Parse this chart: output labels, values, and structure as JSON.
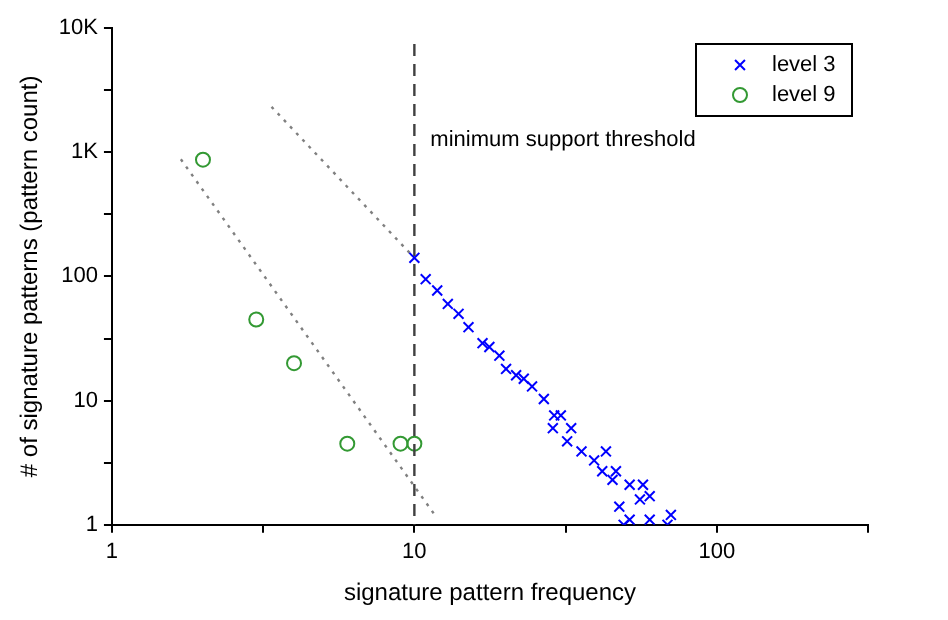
{
  "chart_data": {
    "type": "scatter",
    "xlabel": "signature pattern frequency",
    "ylabel": "# of signature patterns (pattern count)",
    "log": "xy",
    "grid": false,
    "legend": "top right",
    "xlim": [
      1,
      316.2
    ],
    "xticks": [
      1,
      {
        "value": 3.162,
        "label": null
      },
      10,
      {
        "value": 31.62,
        "label": null
      },
      100,
      {
        "value": 316.2,
        "label": null
      }
    ],
    "ylim": [
      1,
      10000
    ],
    "yticks": [
      1,
      {
        "value": 3.162,
        "label": null
      },
      10,
      {
        "value": 31.62,
        "label": null
      },
      100,
      {
        "value": 316.2,
        "label": null
      },
      {
        "value": 1000,
        "label": "1K"
      },
      {
        "value": 3162,
        "label": null
      },
      {
        "value": 10000,
        "label": "10K"
      }
    ],
    "ref_lines": [
      {
        "axis": "x",
        "value": 10,
        "label": "minimum support threshold",
        "color": "#404040",
        "line_style": "dashed"
      }
    ],
    "series": [
      {
        "name": "level 3",
        "color": "#0000ff",
        "marker": "cross",
        "x": [
          10,
          10.9,
          11.9,
          12.9,
          14,
          15.1,
          16.8,
          17.7,
          19.1,
          20.1,
          21.7,
          23,
          24.5,
          26.8,
          29,
          30.5,
          28.7,
          33,
          32,
          35.7,
          39.3,
          43,
          41.8,
          46.4,
          45.2,
          51.5,
          57,
          47.6,
          55.7,
          60,
          51.5,
          60,
          70.5,
          68.7,
          49.2
        ],
        "values": [
          141,
          95,
          77,
          60,
          50,
          39,
          29,
          27,
          23,
          18,
          16,
          15,
          13,
          10.3,
          7.6,
          7.6,
          6,
          6,
          4.7,
          3.9,
          3.3,
          3.9,
          2.7,
          2.7,
          2.3,
          2.1,
          2.1,
          1.4,
          1.6,
          1.7,
          1.1,
          1.1,
          1.2,
          1,
          1
        ]
      },
      {
        "name": "level 9",
        "color": "#339933",
        "marker": "circle",
        "x": [
          2,
          3,
          4,
          6,
          9,
          10
        ],
        "values": [
          870,
          45,
          20,
          4.5,
          4.5,
          4.5
        ]
      },
      {
        "type": "line",
        "color": "#808080",
        "marker": "none",
        "line_style": "dotted",
        "x": [
          1.69,
          11.8
        ],
        "values": [
          877,
          1.16
        ]
      },
      {
        "type": "line",
        "color": "#808080",
        "marker": "none",
        "line_style": "dotted",
        "x": [
          3.37,
          10
        ],
        "values": [
          2320,
          141
        ]
      }
    ]
  }
}
